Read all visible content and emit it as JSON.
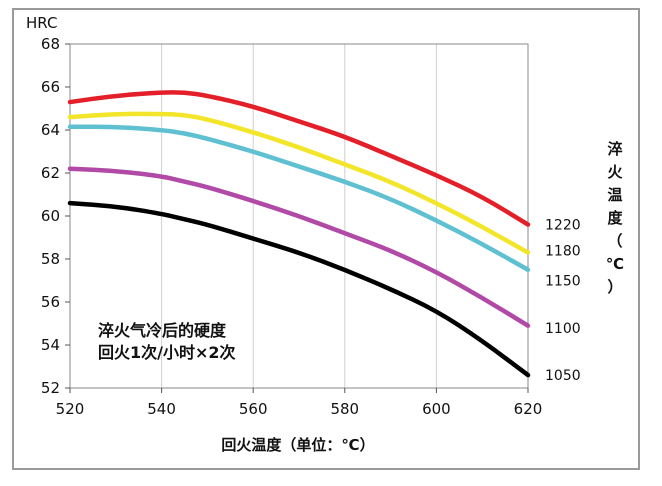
{
  "chart_data": {
    "type": "line",
    "unit_label": "HRC",
    "xlabel": "回火温度（单位：℃）",
    "right_label": "淬火温度（℃）",
    "note_lines": [
      "淬火气冷后的硬度",
      "回火1次/小时×2次"
    ],
    "x_ticks": [
      "520",
      "540",
      "560",
      "580",
      "600",
      "620"
    ],
    "y_ticks": [
      "52",
      "54",
      "56",
      "58",
      "60",
      "62",
      "64",
      "66",
      "68"
    ],
    "xlim": [
      520,
      620
    ],
    "ylim": [
      52,
      68
    ],
    "grid": "vertical",
    "series": [
      {
        "name": "1220",
        "color": "#e3202a",
        "x": [
          520,
          530,
          540,
          545,
          550,
          560,
          570,
          580,
          590,
          600,
          610,
          620
        ],
        "y": [
          65.3,
          65.6,
          65.75,
          65.75,
          65.6,
          65.1,
          64.4,
          63.7,
          62.8,
          61.9,
          60.9,
          59.6
        ]
      },
      {
        "name": "1180",
        "color": "#f2e52a",
        "x": [
          520,
          530,
          540,
          545,
          550,
          560,
          570,
          580,
          590,
          600,
          610,
          620
        ],
        "y": [
          64.6,
          64.75,
          64.75,
          64.7,
          64.5,
          63.9,
          63.2,
          62.4,
          61.6,
          60.6,
          59.5,
          58.3
        ]
      },
      {
        "name": "1150",
        "color": "#5fc0d2",
        "x": [
          520,
          530,
          540,
          545,
          550,
          560,
          570,
          580,
          590,
          600,
          610,
          620
        ],
        "y": [
          64.15,
          64.15,
          64.0,
          63.85,
          63.6,
          63.0,
          62.3,
          61.6,
          60.8,
          59.8,
          58.7,
          57.5
        ]
      },
      {
        "name": "1100",
        "color": "#b04aa6",
        "x": [
          520,
          530,
          540,
          545,
          550,
          560,
          570,
          580,
          590,
          600,
          610,
          620
        ],
        "y": [
          62.2,
          62.1,
          61.85,
          61.6,
          61.35,
          60.7,
          60.0,
          59.2,
          58.4,
          57.4,
          56.2,
          54.9
        ]
      },
      {
        "name": "1050",
        "color": "#000000",
        "x": [
          520,
          530,
          540,
          545,
          550,
          560,
          570,
          580,
          590,
          600,
          610,
          620
        ],
        "y": [
          60.6,
          60.45,
          60.1,
          59.85,
          59.6,
          58.95,
          58.3,
          57.5,
          56.6,
          55.6,
          54.2,
          52.6
        ]
      }
    ]
  }
}
